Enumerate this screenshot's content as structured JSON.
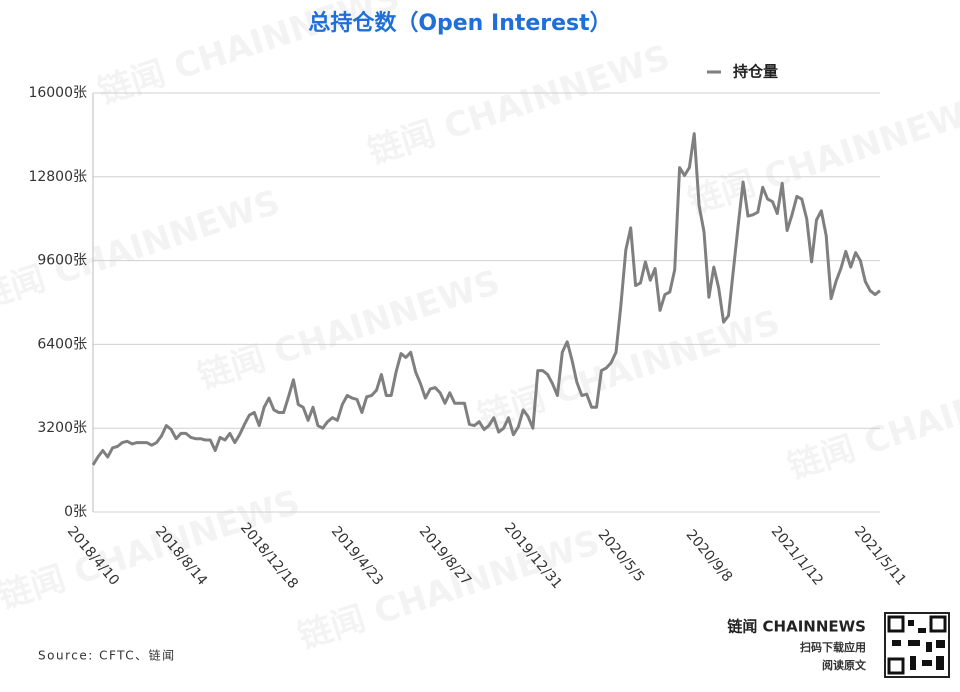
{
  "chart_data": {
    "type": "line",
    "title": "总持仓数（Open Interest）",
    "source": "Source: CFTC、链闻",
    "watermark": "链闻 CHAINNEWS",
    "brand": {
      "name": "链闻 CHAINNEWS",
      "line1": "扫码下载应用",
      "line2": "阅读原文"
    },
    "legend_position": "upper right",
    "grid": true,
    "categories": [
      "2018/4/10",
      null,
      null,
      null,
      null,
      null,
      null,
      null,
      null,
      null,
      null,
      null,
      null,
      null,
      null,
      null,
      null,
      null,
      "2018/8/14",
      null,
      null,
      null,
      null,
      null,
      null,
      null,
      null,
      null,
      null,
      null,
      null,
      null,
      null,
      null,
      null,
      null,
      "2018/12/18",
      null,
      null,
      null,
      null,
      null,
      null,
      null,
      null,
      null,
      null,
      null,
      null,
      null,
      null,
      null,
      null,
      null,
      "2019/4/23",
      null,
      null,
      null,
      null,
      null,
      null,
      null,
      null,
      null,
      null,
      null,
      null,
      null,
      null,
      null,
      null,
      null,
      "2019/8/27",
      null,
      null,
      null,
      null,
      null,
      null,
      null,
      null,
      null,
      null,
      null,
      null,
      null,
      null,
      null,
      null,
      null,
      "2019/12/31",
      null,
      null,
      null,
      null,
      null,
      null,
      null,
      null,
      null,
      null,
      null,
      null,
      null,
      null,
      null,
      null,
      null,
      "2020/5/5",
      null,
      null,
      null,
      null,
      null,
      null,
      null,
      null,
      null,
      null,
      null,
      null,
      null,
      null,
      null,
      null,
      null,
      "2020/9/8",
      null,
      null,
      null,
      null,
      null,
      null,
      null,
      null,
      null,
      null,
      null,
      null,
      null,
      null,
      null,
      null,
      null,
      "2021/1/12",
      null,
      null,
      null,
      null,
      null,
      null,
      null,
      null,
      null,
      null,
      null,
      null,
      null,
      null,
      null,
      null,
      "2021/5/11"
    ],
    "series": [
      {
        "name": "持仓量",
        "color": "#7f7f7f",
        "values": [
          1800,
          2100,
          2350,
          2100,
          2450,
          2500,
          2650,
          2700,
          2600,
          2650,
          2650,
          2650,
          2550,
          2650,
          2900,
          3300,
          3150,
          2800,
          3000,
          3000,
          2850,
          2800,
          2800,
          2750,
          2750,
          2350,
          2850,
          2750,
          3000,
          2650,
          2950,
          3350,
          3700,
          3800,
          3300,
          4000,
          4350,
          3900,
          3800,
          3800,
          4400,
          5050,
          4100,
          4000,
          3500,
          4000,
          3300,
          3200,
          3450,
          3600,
          3500,
          4100,
          4450,
          4350,
          4300,
          3800,
          4400,
          4450,
          4650,
          5250,
          4450,
          4450,
          5350,
          6050,
          5900,
          6100,
          5350,
          4900,
          4350,
          4700,
          4750,
          4550,
          4150,
          4550,
          4150,
          4150,
          4150,
          3350,
          3300,
          3450,
          3150,
          3300,
          3600,
          3050,
          3200,
          3600,
          2950,
          3250,
          3900,
          3650,
          3200,
          5400,
          5400,
          5250,
          4900,
          4450,
          6100,
          6500,
          5800,
          4950,
          4450,
          4500,
          4000,
          4000,
          5400,
          5500,
          5700,
          6100,
          7900,
          10000,
          10850,
          8650,
          8750,
          9550,
          8850,
          9300,
          7700,
          8300,
          8400,
          9250,
          13150,
          12850,
          13150,
          14450,
          11700,
          10700,
          8200,
          9350,
          8550,
          7250,
          7500,
          9250,
          10950,
          12600,
          11300,
          11350,
          11450,
          12400,
          11950,
          11850,
          11400,
          12550,
          10750,
          11350,
          12050,
          11950,
          11200,
          9550,
          11150,
          11500,
          10550,
          8150,
          8800,
          9300,
          9950,
          9350,
          9900,
          9600,
          8800,
          8450,
          8300,
          8450
        ]
      }
    ],
    "ylim": [
      0,
      16000
    ],
    "yticks": [
      {
        "value": 0,
        "label": "0张"
      },
      {
        "value": 3200,
        "label": "3200张"
      },
      {
        "value": 6400,
        "label": "6400张"
      },
      {
        "value": 9600,
        "label": "9600张"
      },
      {
        "value": 12800,
        "label": "12800张"
      },
      {
        "value": 16000,
        "label": "16000张"
      }
    ]
  }
}
